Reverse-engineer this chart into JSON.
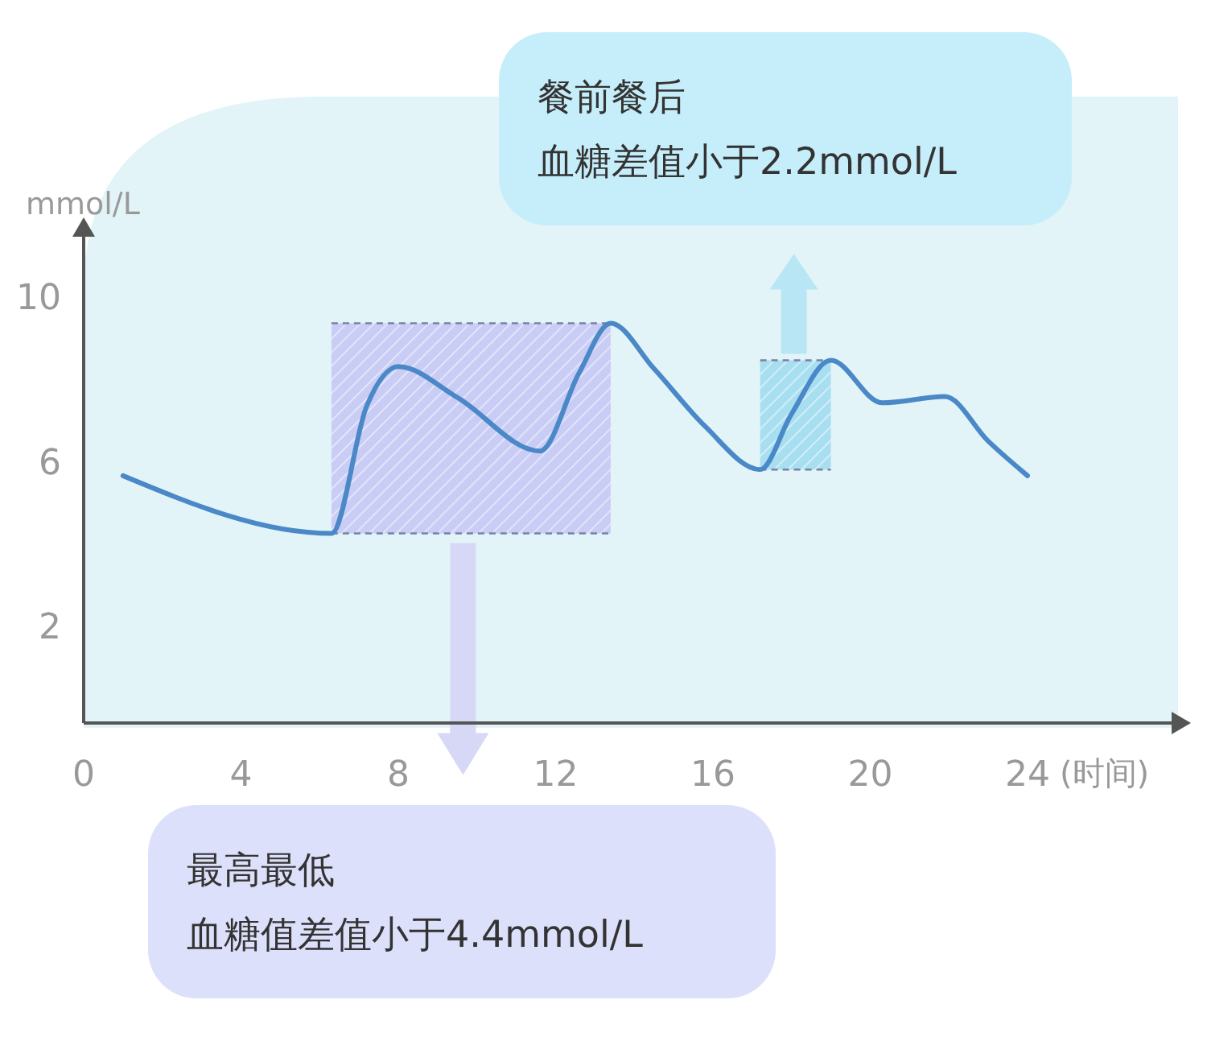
{
  "chart_data": {
    "type": "line",
    "xlabel": "(时间)",
    "ylabel": "mmol/L",
    "xlim": [
      0,
      27.5
    ],
    "ylim": [
      -0.3,
      11.5
    ],
    "xticks": [
      0,
      4,
      8,
      12,
      16,
      20,
      24
    ],
    "yticks": [
      2,
      6,
      10
    ],
    "marker": "none",
    "line_style": "solid",
    "x": [
      1,
      6.3,
      7.2,
      8,
      9.5,
      11.6,
      12.6,
      13.4,
      14.5,
      15.8,
      17.2,
      18,
      19,
      20.3,
      21.9,
      23,
      24
    ],
    "series": [
      {
        "color": "#4a88c7",
        "values": [
          5.7,
          4.3,
          7.4,
          8.35,
          7.6,
          6.3,
          8.2,
          9.4,
          8.3,
          6.9,
          5.85,
          7.2,
          8.5,
          7.47,
          7.62,
          6.54,
          5.7
        ]
      }
    ],
    "annotations": [
      "最高最低",
      "血糖值差值小于4.4mmol/L",
      "餐前餐后",
      "血糖差值小于2.2mmol/L"
    ]
  }
}
